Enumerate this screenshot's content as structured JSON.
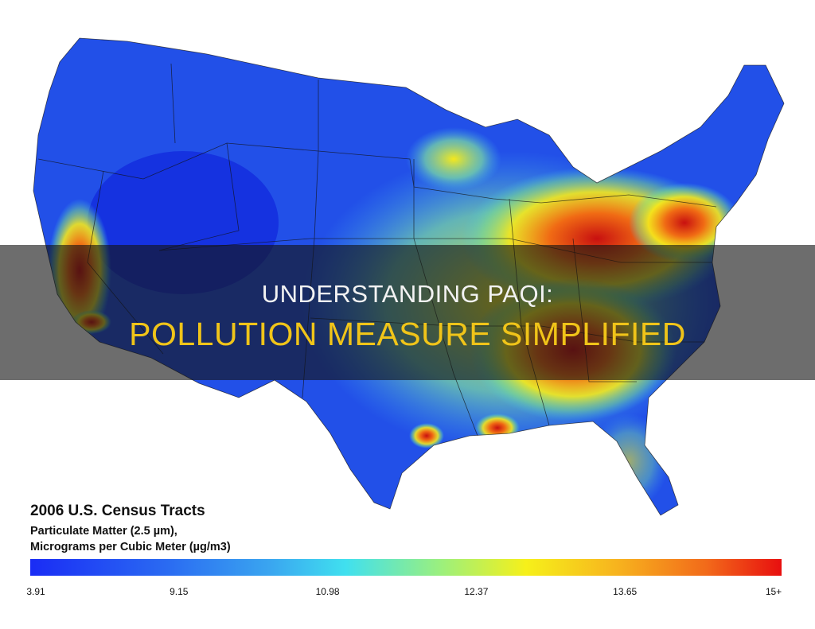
{
  "overlay": {
    "line1": "UNDERSTANDING PAQI:",
    "line2": "POLLUTION MEASURE SIMPLIFIED"
  },
  "legend": {
    "title": "2006 U.S. Census Tracts",
    "subtitle": [
      "Particulate Matter (2.5 µm),",
      "Micrograms per Cubic Meter (µg/m3)"
    ],
    "ticks": [
      "3.91",
      "9.15",
      "10.98",
      "12.37",
      "13.65",
      "15+"
    ]
  }
}
